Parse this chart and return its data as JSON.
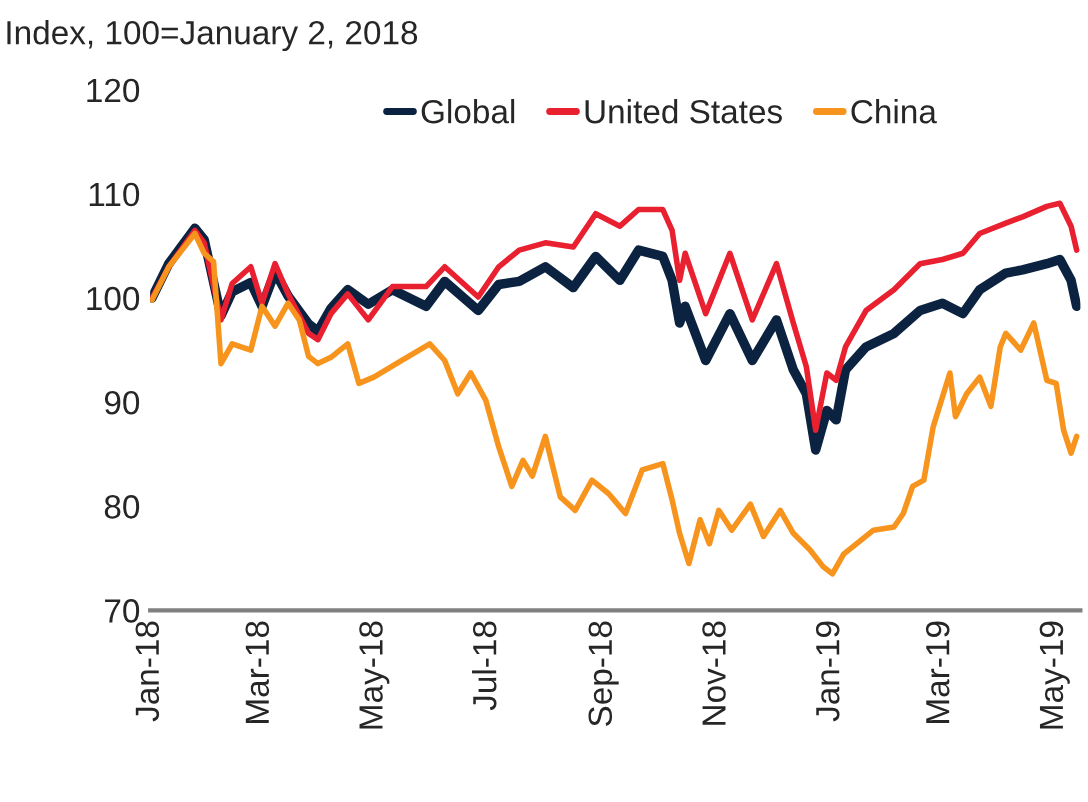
{
  "chart_data": {
    "type": "line",
    "title": "Index, 100=January 2, 2018",
    "xlim": [
      "2018-01-01",
      "2019-05-15"
    ],
    "xticks": [
      {
        "value": "2018-01-01",
        "label": "Jan-18"
      },
      {
        "value": "2018-03-01",
        "label": "Mar-18"
      },
      {
        "value": "2018-05-01",
        "label": "May-18"
      },
      {
        "value": "2018-07-01",
        "label": "Jul-18"
      },
      {
        "value": "2018-09-01",
        "label": "Sep-18"
      },
      {
        "value": "2018-11-01",
        "label": "Nov-18"
      },
      {
        "value": "2019-01-01",
        "label": "Jan-19"
      },
      {
        "value": "2019-03-01",
        "label": "Mar-19"
      },
      {
        "value": "2019-05-01",
        "label": "May-19"
      }
    ],
    "ylim": [
      70,
      120
    ],
    "yticks": [
      70,
      80,
      90,
      100,
      110,
      120
    ],
    "grid": false,
    "legend": "top",
    "marker": "none",
    "line_style": "solid",
    "series": [
      {
        "name": "Global",
        "color": "#0b2341",
        "x": [
          "2018-01-02",
          "2018-01-11",
          "2018-01-25",
          "2018-01-30",
          "2018-02-08",
          "2018-02-14",
          "2018-02-24",
          "2018-03-02",
          "2018-03-09",
          "2018-03-16",
          "2018-03-27",
          "2018-04-01",
          "2018-04-08",
          "2018-04-17",
          "2018-04-28",
          "2018-05-11",
          "2018-05-29",
          "2018-06-08",
          "2018-06-26",
          "2018-07-07",
          "2018-07-18",
          "2018-08-01",
          "2018-08-16",
          "2018-08-28",
          "2018-09-10",
          "2018-09-20",
          "2018-10-03",
          "2018-10-08",
          "2018-10-12",
          "2018-10-15",
          "2018-10-26",
          "2018-11-08",
          "2018-11-20",
          "2018-12-03",
          "2018-12-12",
          "2018-12-19",
          "2018-12-24",
          "2018-12-30",
          "2019-01-04",
          "2019-01-09",
          "2019-01-20",
          "2019-02-04",
          "2019-02-18",
          "2019-03-02",
          "2019-03-13",
          "2019-03-22",
          "2019-04-05",
          "2019-04-14",
          "2019-04-27",
          "2019-05-04",
          "2019-05-10",
          "2019-05-13"
        ],
        "values": [
          100,
          103.3,
          106.7,
          105.6,
          98.3,
          100.6,
          101.5,
          99.2,
          102.5,
          100.2,
          97.5,
          96.8,
          99.0,
          100.8,
          99.4,
          100.8,
          99.2,
          101.6,
          98.8,
          101.3,
          101.6,
          103.0,
          101.0,
          104.0,
          101.7,
          104.6,
          104.0,
          101.7,
          97.6,
          99.2,
          94.0,
          98.5,
          94.0,
          97.9,
          93.1,
          90.8,
          85.4,
          89.2,
          88.3,
          93.1,
          95.3,
          96.6,
          98.8,
          99.5,
          98.5,
          100.8,
          102.4,
          102.7,
          103.3,
          103.7,
          101.7,
          99.2
        ]
      },
      {
        "name": "United States",
        "color": "#e8202f",
        "x": [
          "2018-01-02",
          "2018-01-11",
          "2018-01-25",
          "2018-01-30",
          "2018-02-08",
          "2018-02-14",
          "2018-02-24",
          "2018-03-02",
          "2018-03-09",
          "2018-03-16",
          "2018-03-27",
          "2018-04-01",
          "2018-04-08",
          "2018-04-17",
          "2018-04-28",
          "2018-05-11",
          "2018-05-29",
          "2018-06-08",
          "2018-06-26",
          "2018-07-07",
          "2018-07-18",
          "2018-08-01",
          "2018-08-16",
          "2018-08-28",
          "2018-09-10",
          "2018-09-20",
          "2018-10-03",
          "2018-10-08",
          "2018-10-12",
          "2018-10-15",
          "2018-10-26",
          "2018-11-08",
          "2018-11-20",
          "2018-12-03",
          "2018-12-12",
          "2018-12-19",
          "2018-12-24",
          "2018-12-30",
          "2019-01-04",
          "2019-01-09",
          "2019-01-20",
          "2019-02-04",
          "2019-02-18",
          "2019-03-02",
          "2019-03-13",
          "2019-03-22",
          "2019-04-05",
          "2019-04-14",
          "2019-04-27",
          "2019-05-04",
          "2019-05-10",
          "2019-05-13"
        ],
        "values": [
          100,
          103.0,
          106.5,
          105.3,
          97.9,
          101.4,
          103.0,
          99.5,
          103.3,
          100.4,
          96.6,
          96.0,
          98.5,
          100.4,
          97.9,
          101.1,
          101.1,
          103.0,
          100.1,
          103.0,
          104.6,
          105.3,
          104.9,
          108.1,
          106.9,
          108.5,
          108.5,
          106.5,
          101.7,
          104.3,
          98.5,
          104.3,
          97.9,
          103.3,
          97.6,
          93.4,
          87.3,
          92.8,
          92.1,
          95.3,
          98.8,
          100.8,
          103.3,
          103.7,
          104.3,
          106.2,
          107.2,
          107.8,
          108.8,
          109.1,
          106.9,
          104.6
        ]
      },
      {
        "name": "China",
        "color": "#f7941d",
        "x": [
          "2018-01-02",
          "2018-01-11",
          "2018-01-25",
          "2018-01-30",
          "2018-02-04",
          "2018-02-08",
          "2018-02-14",
          "2018-02-24",
          "2018-03-02",
          "2018-03-09",
          "2018-03-16",
          "2018-03-22",
          "2018-03-27",
          "2018-04-01",
          "2018-04-08",
          "2018-04-17",
          "2018-04-23",
          "2018-05-01",
          "2018-05-16",
          "2018-05-31",
          "2018-06-08",
          "2018-06-15",
          "2018-06-22",
          "2018-06-30",
          "2018-07-07",
          "2018-07-14",
          "2018-07-20",
          "2018-07-25",
          "2018-08-01",
          "2018-08-09",
          "2018-08-17",
          "2018-08-26",
          "2018-09-04",
          "2018-09-13",
          "2018-09-22",
          "2018-10-03",
          "2018-10-08",
          "2018-10-12",
          "2018-10-17",
          "2018-10-23",
          "2018-10-28",
          "2018-11-02",
          "2018-11-09",
          "2018-11-19",
          "2018-11-26",
          "2018-12-05",
          "2018-12-12",
          "2018-12-21",
          "2018-12-28",
          "2019-01-02",
          "2019-01-08",
          "2019-01-17",
          "2019-01-24",
          "2019-02-04",
          "2019-02-09",
          "2019-02-14",
          "2019-02-20",
          "2019-02-25",
          "2019-03-06",
          "2019-03-09",
          "2019-03-15",
          "2019-03-22",
          "2019-03-28",
          "2019-04-02",
          "2019-04-05",
          "2019-04-13",
          "2019-04-20",
          "2019-04-27",
          "2019-05-02",
          "2019-05-06",
          "2019-05-10",
          "2019-05-13"
        ],
        "values": [
          99.8,
          103,
          106.2,
          104.3,
          103.5,
          93.7,
          95.6,
          95,
          99.2,
          97.3,
          99.5,
          97.9,
          94.4,
          93.7,
          94.3,
          95.6,
          91.8,
          92.4,
          94.0,
          95.6,
          94,
          90.8,
          92.8,
          90.2,
          85.7,
          81.9,
          84.4,
          82.9,
          86.7,
          80.9,
          79.6,
          82.5,
          81.2,
          79.3,
          83.5,
          84.1,
          80.6,
          77.4,
          74.5,
          78.7,
          76.4,
          79.6,
          77.7,
          80.2,
          77.1,
          79.6,
          77.4,
          75.8,
          74.2,
          73.5,
          75.4,
          76.7,
          77.7,
          78.0,
          79.3,
          81.9,
          82.5,
          87.6,
          92.8,
          88.6,
          90.8,
          92.4,
          89.6,
          95.3,
          96.6,
          95.0,
          97.6,
          92.1,
          91.8,
          87.3,
          85.1,
          86.7
        ]
      }
    ]
  }
}
